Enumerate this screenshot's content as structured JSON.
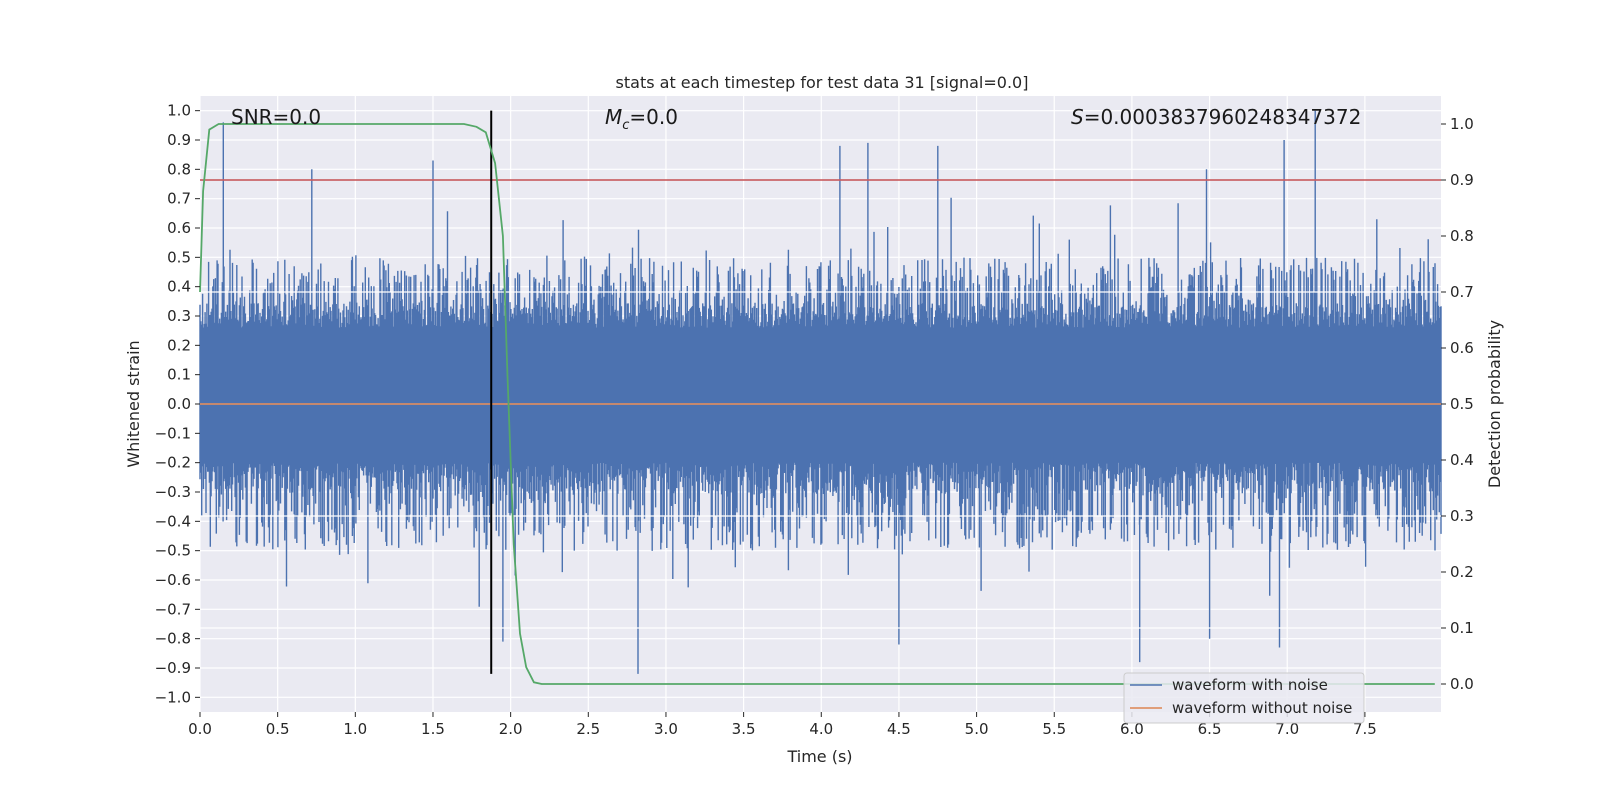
{
  "chart_data": {
    "type": "line",
    "title": "stats at each timestep for test data 31 [signal=0.0]",
    "xlabel": "Time (s)",
    "ylabel": "Whitened strain",
    "y2label": "Detection probability",
    "xlim": [
      0.0,
      7.99
    ],
    "ylim": [
      -1.05,
      1.05
    ],
    "y2lim": [
      -0.05,
      1.05
    ],
    "xticks": [
      0.0,
      0.5,
      1.0,
      1.5,
      2.0,
      2.5,
      3.0,
      3.5,
      4.0,
      4.5,
      5.0,
      5.5,
      6.0,
      6.5,
      7.0,
      7.5
    ],
    "xtick_labels": [
      "0.0",
      "0.5",
      "1.0",
      "1.5",
      "2.0",
      "2.5",
      "3.0",
      "3.5",
      "4.0",
      "4.5",
      "5.0",
      "5.5",
      "6.0",
      "6.5",
      "7.0",
      "7.5"
    ],
    "yticks": [
      1.0,
      0.9,
      0.8,
      0.7,
      0.6,
      0.5,
      0.4,
      0.3,
      0.2,
      0.1,
      0.0,
      -0.1,
      -0.2,
      -0.3,
      -0.4,
      -0.5,
      -0.6,
      -0.7,
      -0.8,
      -0.9,
      -1.0
    ],
    "ytick_labels": [
      "1.0",
      "0.9",
      "0.8",
      "0.7",
      "0.6",
      "0.5",
      "0.4",
      "0.3",
      "0.2",
      "0.1",
      "0.0",
      "−0.1",
      "−0.2",
      "−0.3",
      "−0.4",
      "−0.5",
      "−0.6",
      "−0.7",
      "−0.8",
      "−0.9",
      "−1.0"
    ],
    "y2ticks": [
      1.0,
      0.9,
      0.8,
      0.7,
      0.6,
      0.5,
      0.4,
      0.3,
      0.2,
      0.1,
      0.0
    ],
    "y2tick_labels": [
      "1.0",
      "0.9",
      "0.8",
      "0.7",
      "0.6",
      "0.5",
      "0.4",
      "0.3",
      "0.2",
      "0.1",
      "0.0"
    ],
    "grid": true,
    "legend_position": "lower-right",
    "annotations": {
      "snr": "SNR=0.0",
      "mc_symbol": "M",
      "mc_subscript": "c",
      "mc_value": "=0.0",
      "s_symbol": "S",
      "s_value": "=0.0003837960248347372"
    },
    "threshold": {
      "value": 0.9,
      "axis": "right",
      "color": "#c44e52"
    },
    "vertical_marker": {
      "x": 1.875,
      "color": "#000000"
    },
    "series": [
      {
        "name": "waveform with noise",
        "color": "#4c72b0",
        "axis": "left",
        "noise_envelope": {
          "core_low": -0.2,
          "core_high": 0.26,
          "typical_peak_high": 0.5,
          "typical_peak_low": -0.5,
          "notable_peaks": [
            {
              "x": 0.15,
              "y": 0.96
            },
            {
              "x": 0.72,
              "y": 0.8
            },
            {
              "x": 1.5,
              "y": 0.83
            },
            {
              "x": 4.12,
              "y": 0.88
            },
            {
              "x": 4.3,
              "y": 0.89
            },
            {
              "x": 4.75,
              "y": 0.88
            },
            {
              "x": 6.48,
              "y": 0.8
            },
            {
              "x": 6.98,
              "y": 0.9
            },
            {
              "x": 7.18,
              "y": 1.0
            },
            {
              "x": 2.82,
              "y": -0.92
            },
            {
              "x": 6.05,
              "y": -0.88
            },
            {
              "x": 6.5,
              "y": -0.8
            },
            {
              "x": 6.95,
              "y": -0.83
            },
            {
              "x": 1.95,
              "y": -0.81
            },
            {
              "x": 4.5,
              "y": -0.82
            }
          ]
        }
      },
      {
        "name": "waveform without noise",
        "color": "#dd8452",
        "axis": "left",
        "x": [
          0.0,
          7.99
        ],
        "y": [
          0.0,
          0.0
        ]
      },
      {
        "name": "detection probability",
        "color": "#55a868",
        "axis": "right",
        "x": [
          0.0,
          0.02,
          0.06,
          0.12,
          0.2,
          0.5,
          1.0,
          1.5,
          1.7,
          1.78,
          1.84,
          1.9,
          1.95,
          1.98,
          2.02,
          2.06,
          2.1,
          2.15,
          2.2,
          2.5,
          3.0,
          4.0,
          5.0,
          6.0,
          7.0,
          7.95
        ],
        "y": [
          0.7,
          0.88,
          0.99,
          1.0,
          1.0,
          1.0,
          1.0,
          1.0,
          1.0,
          0.995,
          0.985,
          0.93,
          0.8,
          0.55,
          0.25,
          0.09,
          0.03,
          0.003,
          0.0,
          0.0,
          0.0,
          0.0,
          0.0,
          0.0,
          0.0,
          0.0
        ]
      }
    ]
  }
}
